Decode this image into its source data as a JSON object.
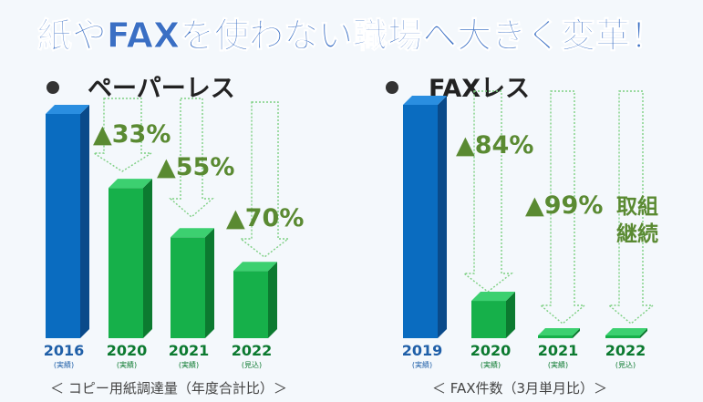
{
  "headline": "紙やFAXを使わない職場へ大きく変革！",
  "colors": {
    "headline": "#3a6fc4",
    "blue_front": "#0a6cc0",
    "blue_side": "#0a4a8a",
    "blue_top": "#2a8ee0",
    "green_front": "#16b04a",
    "green_side": "#0c7a30",
    "green_top": "#3cd070",
    "label_blue": "#1f5fa8",
    "pct_green": "#5a8a32",
    "arrow": "#7dcf82",
    "subtle": "#444444"
  },
  "chart_data": [
    {
      "type": "bar",
      "heading": "ペーパーレス",
      "categories": [
        "2016",
        "2020",
        "2021",
        "2022"
      ],
      "sublabels": [
        "(実績)",
        "(実績)",
        "(実績)",
        "(見込)"
      ],
      "values": [
        100,
        67,
        45,
        30
      ],
      "reductions": [
        "▲33%",
        "▲55%",
        "▲70%"
      ],
      "caption": "＜ コピー用紙調達量（年度合計比）＞",
      "ylim": [
        0,
        100
      ]
    },
    {
      "type": "bar",
      "heading": "FAXレス",
      "categories": [
        "2019",
        "2020",
        "2021",
        "2022"
      ],
      "sublabels": [
        "(実績)",
        "(実績)",
        "(実績)",
        "(見込)"
      ],
      "values": [
        100,
        16,
        1,
        1
      ],
      "reductions": [
        "▲84%",
        "▲99%"
      ],
      "note": [
        "取組",
        "継続"
      ],
      "caption": "＜ FAX件数（3月単月比）＞",
      "ylim": [
        0,
        100
      ]
    }
  ]
}
